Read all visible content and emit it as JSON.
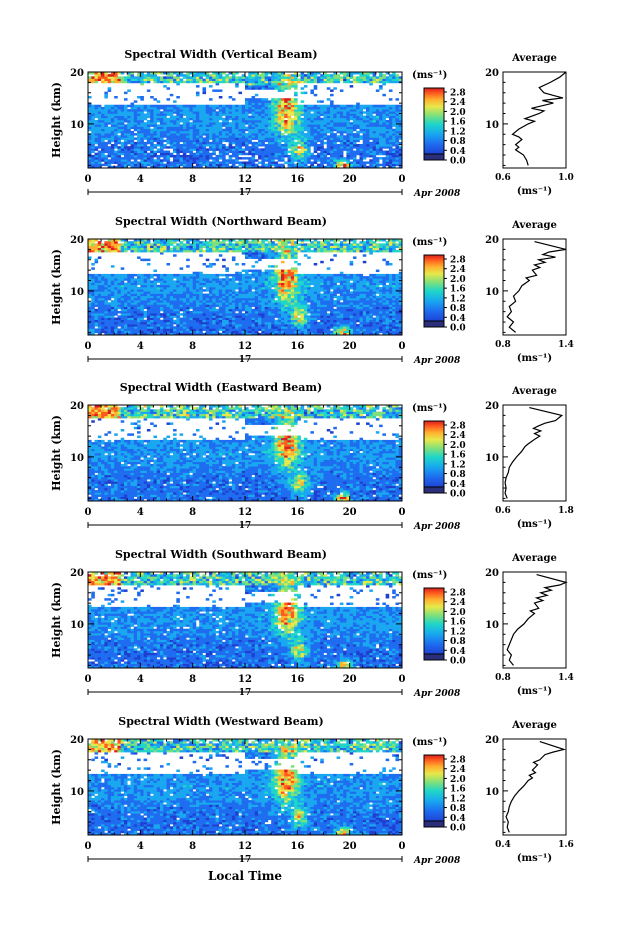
{
  "figure": {
    "common": {
      "y_axis_label": "Height (km)",
      "x_ticks": [
        "0",
        "4",
        "8",
        "12",
        "16",
        "20",
        "0"
      ],
      "date_label": "17",
      "month_label": "Apr 2008",
      "x_axis_label": "Local Time",
      "colorbar_unit": "(ms⁻¹)",
      "colorbar_ticks": [
        "2.8",
        "2.4",
        "2.0",
        "1.6",
        "1.2",
        "0.8",
        "0.4",
        "0.0"
      ],
      "avg_title": "Average",
      "avg_unit": "(ms⁻¹)"
    },
    "colors": {
      "colormap": [
        "#2b2f7a",
        "#1f3fd0",
        "#1e6cf0",
        "#19a7f0",
        "#1fd6c8",
        "#7fe07a",
        "#e8e84a",
        "#ffb02e",
        "#ff5a1e",
        "#d81e1e"
      ]
    }
  },
  "chart_data": [
    {
      "type": "heatmap",
      "title": "Spectral Width (Vertical Beam)",
      "xlabel": "",
      "ylabel": "Height (km)",
      "xlim": [
        0,
        24
      ],
      "ylim": [
        1.5,
        20
      ],
      "x_ticks": [
        0,
        4,
        8,
        12,
        16,
        20,
        24
      ],
      "y_ticks": [
        10,
        20
      ],
      "colorbar": {
        "unit": "ms-1",
        "range": [
          0.0,
          2.8
        ],
        "ticks": [
          0.0,
          0.4,
          0.8,
          1.2,
          1.6,
          2.0,
          2.4,
          2.8
        ]
      },
      "average_profile": {
        "title": "Average",
        "xlabel": "(ms-1)",
        "xlim": [
          0.6,
          1.0
        ],
        "x_ticks": [
          "0.6",
          "1.0"
        ],
        "ylim": [
          1.5,
          20
        ],
        "x": [
          0.76,
          0.75,
          0.73,
          0.68,
          0.7,
          0.68,
          0.72,
          0.7,
          0.66,
          0.7,
          0.76,
          0.8,
          0.74,
          0.83,
          0.86,
          0.78,
          0.92,
          0.85,
          0.98,
          0.92,
          0.86,
          0.83,
          0.9,
          0.96,
          1.0
        ],
        "y": [
          2.0,
          3.0,
          4.0,
          5.0,
          5.5,
          6.0,
          7.0,
          7.5,
          8.0,
          9.0,
          10.0,
          10.5,
          11.0,
          12.0,
          12.5,
          13.0,
          14.0,
          14.5,
          15.0,
          15.5,
          16.0,
          17.0,
          18.0,
          19.0,
          20.0
        ]
      }
    },
    {
      "type": "heatmap",
      "title": "Spectral Width (Northward Beam)",
      "xlabel": "",
      "ylabel": "Height (km)",
      "xlim": [
        0,
        24
      ],
      "ylim": [
        1.5,
        20
      ],
      "x_ticks": [
        0,
        4,
        8,
        12,
        16,
        20,
        24
      ],
      "y_ticks": [
        10,
        20
      ],
      "colorbar": {
        "unit": "ms-1",
        "range": [
          0.0,
          2.8
        ],
        "ticks": [
          0.0,
          0.4,
          0.8,
          1.2,
          1.6,
          2.0,
          2.4,
          2.8
        ]
      },
      "average_profile": {
        "title": "Average",
        "xlabel": "(ms-1)",
        "xlim": [
          0.8,
          1.4
        ],
        "x_ticks": [
          "0.8",
          "1.4"
        ],
        "ylim": [
          1.5,
          20
        ],
        "x": [
          0.92,
          0.86,
          0.9,
          0.84,
          0.88,
          0.86,
          0.92,
          0.9,
          0.95,
          0.98,
          1.05,
          1.02,
          1.12,
          1.08,
          1.15,
          1.1,
          1.2,
          1.14,
          1.3,
          1.18,
          1.24,
          1.4,
          1.1
        ],
        "y": [
          2.0,
          3.0,
          4.0,
          5.0,
          6.0,
          7.0,
          8.0,
          9.0,
          10.0,
          11.0,
          12.0,
          12.5,
          13.0,
          14.0,
          14.5,
          15.0,
          15.5,
          16.0,
          16.5,
          17.0,
          17.5,
          18.0,
          19.5
        ]
      }
    },
    {
      "type": "heatmap",
      "title": "Spectral Width (Eastward Beam)",
      "xlabel": "",
      "ylabel": "Height (km)",
      "xlim": [
        0,
        24
      ],
      "ylim": [
        1.5,
        20
      ],
      "x_ticks": [
        0,
        4,
        8,
        12,
        16,
        20,
        24
      ],
      "y_ticks": [
        10,
        20
      ],
      "colorbar": {
        "unit": "ms-1",
        "range": [
          0.0,
          2.8
        ],
        "ticks": [
          0.0,
          0.4,
          0.8,
          1.2,
          1.6,
          2.0,
          2.4,
          2.8
        ]
      },
      "average_profile": {
        "title": "Average",
        "xlabel": "(ms-1)",
        "xlim": [
          0.6,
          1.8
        ],
        "x_ticks": [
          "0.6",
          "1.8"
        ],
        "ylim": [
          1.5,
          20
        ],
        "x": [
          0.68,
          0.64,
          0.66,
          0.64,
          0.66,
          0.7,
          0.72,
          0.78,
          0.86,
          0.95,
          1.02,
          1.08,
          1.15,
          1.22,
          1.3,
          1.2,
          1.32,
          1.18,
          1.28,
          1.4,
          1.6,
          1.72,
          1.1
        ],
        "y": [
          2.0,
          3.0,
          4.0,
          5.0,
          6.0,
          7.0,
          8.0,
          9.0,
          10.0,
          11.0,
          12.0,
          12.5,
          13.0,
          13.5,
          14.0,
          14.5,
          15.0,
          15.5,
          16.0,
          16.5,
          17.0,
          18.0,
          19.5
        ]
      }
    },
    {
      "type": "heatmap",
      "title": "Spectral Width (Southward Beam)",
      "xlabel": "",
      "ylabel": "Height (km)",
      "xlim": [
        0,
        24
      ],
      "ylim": [
        1.5,
        20
      ],
      "x_ticks": [
        0,
        4,
        8,
        12,
        16,
        20,
        24
      ],
      "y_ticks": [
        10,
        20
      ],
      "colorbar": {
        "unit": "ms-1",
        "range": [
          0.0,
          2.8
        ],
        "ticks": [
          0.0,
          0.4,
          0.8,
          1.2,
          1.6,
          2.0,
          2.4,
          2.8
        ]
      },
      "average_profile": {
        "title": "Average",
        "xlabel": "(ms-1)",
        "xlim": [
          0.8,
          1.4
        ],
        "x_ticks": [
          "0.8",
          "1.4"
        ],
        "ylim": [
          1.5,
          20
        ],
        "x": [
          0.9,
          0.86,
          0.88,
          0.84,
          0.86,
          0.88,
          0.9,
          0.94,
          1.0,
          1.04,
          1.1,
          1.06,
          1.14,
          1.1,
          1.18,
          1.12,
          1.22,
          1.16,
          1.26,
          1.2,
          1.34,
          1.4,
          1.12
        ],
        "y": [
          2.0,
          3.0,
          4.0,
          5.0,
          6.0,
          7.0,
          8.0,
          9.0,
          10.0,
          11.0,
          12.0,
          12.5,
          13.0,
          14.0,
          14.5,
          15.0,
          15.5,
          16.0,
          16.5,
          17.0,
          17.5,
          18.0,
          19.5
        ]
      }
    },
    {
      "type": "heatmap",
      "title": "Spectral Width (Westward Beam)",
      "xlabel": "Local Time",
      "ylabel": "Height (km)",
      "xlim": [
        0,
        24
      ],
      "ylim": [
        1.5,
        20
      ],
      "x_ticks": [
        0,
        4,
        8,
        12,
        16,
        20,
        24
      ],
      "y_ticks": [
        10,
        20
      ],
      "colorbar": {
        "unit": "ms-1",
        "range": [
          0.0,
          2.8
        ],
        "ticks": [
          0.0,
          0.4,
          0.8,
          1.2,
          1.6,
          2.0,
          2.4,
          2.8
        ]
      },
      "average_profile": {
        "title": "Average",
        "xlabel": "(ms-1)",
        "xlim": [
          0.4,
          1.6
        ],
        "x_ticks": [
          "0.4",
          "1.6"
        ],
        "ylim": [
          1.5,
          20
        ],
        "x": [
          0.52,
          0.48,
          0.5,
          0.46,
          0.5,
          0.52,
          0.56,
          0.62,
          0.7,
          0.8,
          0.88,
          0.96,
          0.9,
          1.02,
          0.96,
          1.06,
          0.98,
          1.1,
          1.2,
          1.36,
          1.56,
          1.1
        ],
        "y": [
          2.0,
          3.0,
          4.0,
          5.0,
          6.0,
          7.0,
          8.0,
          9.0,
          10.0,
          11.0,
          12.0,
          12.5,
          13.0,
          13.5,
          14.0,
          15.0,
          15.5,
          16.0,
          17.0,
          17.5,
          18.0,
          19.5
        ]
      }
    }
  ]
}
